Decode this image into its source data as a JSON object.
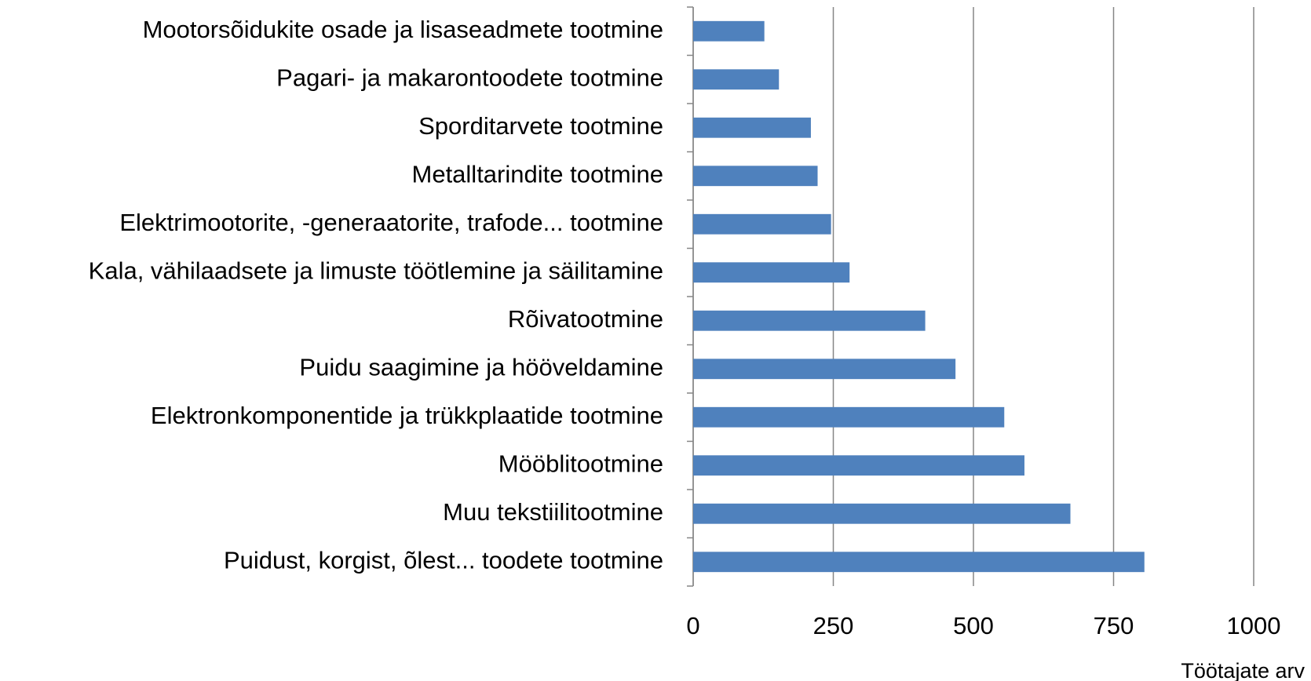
{
  "chart_data": {
    "type": "bar",
    "orientation": "horizontal",
    "x_label": "Töötajate arv",
    "categories": [
      "Mootorsõidukite osade ja lisaseadmete tootmine",
      "Pagari- ja makarontoodete tootmine",
      "Sporditarvete tootmine",
      "Metalltarindite tootmine",
      "Elektrimootorite, -generaatorite, trafode... tootmine",
      "Kala, vähilaadsete ja limuste töötlemine ja säilitamine",
      "Rõivatootmine",
      "Puidu saagimine ja hööveldamine",
      "Elektronkomponentide ja trükkplaatide tootmine",
      "Mööblitootmine",
      "Muu tekstiilitootmine",
      "Puidust, korgist, õlest... toodete tootmine"
    ],
    "values": [
      127,
      153,
      210,
      222,
      246,
      279,
      414,
      468,
      555,
      591,
      673,
      805
    ],
    "color": "#4f81bd",
    "xlim": [
      0,
      1000
    ],
    "xticks": [
      0,
      250,
      500,
      750,
      1000
    ],
    "grid": true
  }
}
